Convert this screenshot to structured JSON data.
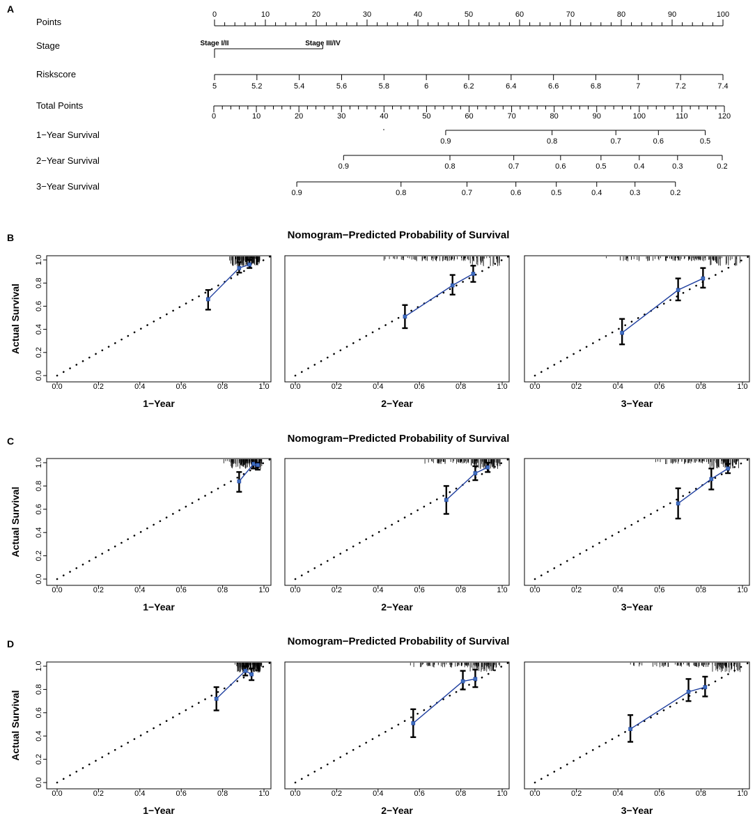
{
  "chart_data": [
    {
      "type": "nomogram",
      "panel": "A",
      "rows": [
        {
          "label": "Points",
          "min": 0,
          "max": 100,
          "major": [
            0,
            10,
            20,
            30,
            40,
            50,
            60,
            70,
            80,
            90,
            100
          ],
          "minor_step": 2,
          "labels_above": true,
          "label_values": [
            0,
            10,
            20,
            30,
            40,
            50,
            60,
            70,
            80,
            90,
            100
          ]
        },
        {
          "label": "Stage",
          "categories": [
            "Stage I/II",
            "Stage III/IV"
          ],
          "points": [
            0,
            21.3
          ]
        },
        {
          "label": "Riskscore",
          "values": [
            5,
            5.2,
            5.4,
            5.6,
            5.8,
            6,
            6.2,
            6.4,
            6.6,
            6.8,
            7,
            7.2,
            7.4
          ],
          "points_start": 0,
          "points_end": 100
        },
        {
          "label": "Total Points",
          "min": 0,
          "max": 120,
          "major": [
            0,
            10,
            20,
            30,
            40,
            50,
            60,
            70,
            80,
            90,
            100,
            110,
            120
          ],
          "minor_step": 2
        },
        {
          "label": "1−Year Survival",
          "values": [
            "0.9",
            "0.8",
            "0.7",
            "0.6",
            "0.5"
          ],
          "total_points": [
            54.5,
            79.5,
            94.5,
            104.5,
            115.5
          ]
        },
        {
          "label": "2−Year Survival",
          "values": [
            "0.9",
            "0.8",
            "0.7",
            "0.6",
            "0.5",
            "0.4",
            "0.3",
            "0.2"
          ],
          "total_points": [
            30.5,
            55.5,
            70.5,
            81.5,
            91,
            100,
            109,
            119.5
          ]
        },
        {
          "label": "3−Year Survival",
          "values": [
            "0.9",
            "0.8",
            "0.7",
            "0.6",
            "0.5",
            "0.4",
            "0.3",
            "0.2"
          ],
          "total_points": [
            19.5,
            44,
            59.5,
            71,
            80.5,
            90,
            99,
            108.5
          ]
        }
      ]
    },
    {
      "type": "calibration",
      "panel": "B",
      "title": "Nomogram−Predicted Probability of Survival",
      "ylabel": "Actual Survival",
      "xlim": [
        0,
        1
      ],
      "ylim": [
        0,
        1
      ],
      "ticks": [
        "0.0",
        "0.2",
        "0.4",
        "0.6",
        "0.8",
        "1.0"
      ],
      "plots": [
        {
          "xlabel": "1−Year",
          "points": [
            {
              "x": 0.73,
              "y": 0.66,
              "lo": 0.57,
              "hi": 0.74
            },
            {
              "x": 0.88,
              "y": 0.93,
              "lo": 0.89,
              "hi": 0.98
            },
            {
              "x": 0.93,
              "y": 0.96,
              "lo": 0.93,
              "hi": 1.0
            }
          ],
          "rug": [
            0.83,
            0.98
          ]
        },
        {
          "xlabel": "2−Year",
          "points": [
            {
              "x": 0.53,
              "y": 0.51,
              "lo": 0.41,
              "hi": 0.61
            },
            {
              "x": 0.76,
              "y": 0.78,
              "lo": 0.7,
              "hi": 0.87
            },
            {
              "x": 0.86,
              "y": 0.88,
              "lo": 0.81,
              "hi": 0.95
            }
          ],
          "rug": [
            0.4,
            0.99
          ]
        },
        {
          "xlabel": "3−Year",
          "points": [
            {
              "x": 0.42,
              "y": 0.37,
              "lo": 0.27,
              "hi": 0.49
            },
            {
              "x": 0.69,
              "y": 0.74,
              "lo": 0.65,
              "hi": 0.84
            },
            {
              "x": 0.81,
              "y": 0.84,
              "lo": 0.76,
              "hi": 0.93
            }
          ],
          "rug": [
            0.3,
            0.99
          ]
        }
      ]
    },
    {
      "type": "calibration",
      "panel": "C",
      "title": "Nomogram−Predicted Probability of Survival",
      "ylabel": "Actual Survival",
      "xlim": [
        0,
        1
      ],
      "ylim": [
        0,
        1
      ],
      "ticks": [
        "0.0",
        "0.2",
        "0.4",
        "0.6",
        "0.8",
        "1.0"
      ],
      "plots": [
        {
          "xlabel": "1−Year",
          "points": [
            {
              "x": 0.88,
              "y": 0.84,
              "lo": 0.75,
              "hi": 0.92
            },
            {
              "x": 0.95,
              "y": 0.99,
              "lo": 0.95,
              "hi": 1.0
            },
            {
              "x": 0.97,
              "y": 0.98,
              "lo": 0.94,
              "hi": 1.0
            }
          ],
          "rug": [
            0.8,
            0.99
          ]
        },
        {
          "xlabel": "2−Year",
          "points": [
            {
              "x": 0.73,
              "y": 0.68,
              "lo": 0.56,
              "hi": 0.8
            },
            {
              "x": 0.87,
              "y": 0.91,
              "lo": 0.85,
              "hi": 0.97
            },
            {
              "x": 0.93,
              "y": 0.96,
              "lo": 0.92,
              "hi": 1.0
            }
          ],
          "rug": [
            0.6,
            0.99
          ]
        },
        {
          "xlabel": "3−Year",
          "points": [
            {
              "x": 0.69,
              "y": 0.65,
              "lo": 0.52,
              "hi": 0.78
            },
            {
              "x": 0.85,
              "y": 0.86,
              "lo": 0.77,
              "hi": 0.95
            },
            {
              "x": 0.93,
              "y": 0.95,
              "lo": 0.91,
              "hi": 0.99
            }
          ],
          "rug": [
            0.55,
            0.99
          ]
        }
      ]
    },
    {
      "type": "calibration",
      "panel": "D",
      "title": "Nomogram−Predicted Probability of Survival",
      "ylabel": "Actual Survival",
      "xlim": [
        0,
        1
      ],
      "ylim": [
        0,
        1
      ],
      "ticks": [
        "0.0",
        "0.2",
        "0.4",
        "0.6",
        "0.8",
        "1.0"
      ],
      "plots": [
        {
          "xlabel": "1−Year",
          "points": [
            {
              "x": 0.77,
              "y": 0.72,
              "lo": 0.62,
              "hi": 0.82
            },
            {
              "x": 0.91,
              "y": 0.96,
              "lo": 0.92,
              "hi": 1.0
            },
            {
              "x": 0.94,
              "y": 0.93,
              "lo": 0.88,
              "hi": 0.98
            }
          ],
          "rug": [
            0.85,
            0.99
          ]
        },
        {
          "xlabel": "2−Year",
          "points": [
            {
              "x": 0.57,
              "y": 0.51,
              "lo": 0.39,
              "hi": 0.63
            },
            {
              "x": 0.81,
              "y": 0.87,
              "lo": 0.8,
              "hi": 0.96
            },
            {
              "x": 0.87,
              "y": 0.89,
              "lo": 0.82,
              "hi": 0.97
            }
          ],
          "rug": [
            0.55,
            0.99
          ]
        },
        {
          "xlabel": "3−Year",
          "points": [
            {
              "x": 0.46,
              "y": 0.46,
              "lo": 0.35,
              "hi": 0.58
            },
            {
              "x": 0.74,
              "y": 0.78,
              "lo": 0.7,
              "hi": 0.89
            },
            {
              "x": 0.82,
              "y": 0.82,
              "lo": 0.74,
              "hi": 0.91
            }
          ],
          "rug": [
            0.45,
            0.99
          ]
        }
      ]
    }
  ],
  "colors": {
    "line": "#1f3f9f",
    "marker": "#3f6fbf",
    "ink": "#000000"
  }
}
